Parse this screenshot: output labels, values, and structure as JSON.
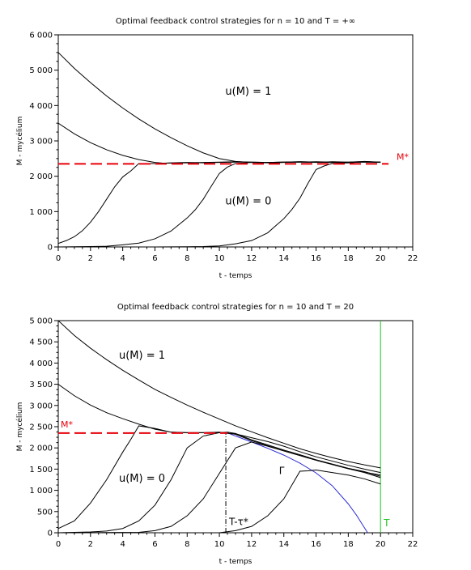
{
  "chart_data": [
    {
      "type": "line",
      "title": "Optimal feedback control strategies for n = 10 and T = +∞",
      "xlabel": "t - temps",
      "ylabel": "M - mycélium",
      "xlim": [
        0,
        22
      ],
      "ylim": [
        0,
        6000
      ],
      "xticks": [
        0,
        2,
        4,
        6,
        8,
        10,
        12,
        14,
        16,
        18,
        20,
        22
      ],
      "xtick_labels": [
        "0",
        "2",
        "4",
        "6",
        "8",
        "10",
        "12",
        "14",
        "16",
        "18",
        "20",
        "22"
      ],
      "yticks": [
        0,
        1000,
        2000,
        3000,
        4000,
        5000,
        6000
      ],
      "ytick_labels": [
        "0",
        "1 000",
        "2 000",
        "3 000",
        "4 000",
        "5 000",
        "6 000"
      ],
      "grid": false,
      "reference_line": {
        "label": "M*",
        "y": 2350,
        "x": [
          0,
          20.5
        ],
        "color": "#e8000b",
        "style": "dashed"
      },
      "annotations": [
        {
          "text": "u(M) = 1",
          "x": 11.8,
          "y": 4300
        },
        {
          "text": "u(M) = 0",
          "x": 11.8,
          "y": 1200
        }
      ],
      "series": [
        {
          "x": [
            0,
            1,
            2,
            3,
            4,
            5,
            6,
            7,
            8,
            9,
            10,
            11,
            12,
            13,
            13.5,
            14,
            15,
            16,
            17,
            18,
            19,
            20
          ],
          "y": [
            5500,
            5050,
            4650,
            4270,
            3930,
            3620,
            3340,
            3090,
            2860,
            2660,
            2500,
            2420,
            2390,
            2380,
            2380,
            2390,
            2400,
            2410,
            2400,
            2390,
            2400,
            2390
          ]
        },
        {
          "x": [
            0,
            1,
            2,
            3,
            4,
            5,
            6,
            6.5,
            7,
            8,
            9,
            10,
            11,
            12,
            13,
            14,
            15,
            16,
            17,
            18,
            19,
            20
          ],
          "y": [
            3500,
            3200,
            2950,
            2750,
            2590,
            2470,
            2390,
            2370,
            2370,
            2380,
            2390,
            2400,
            2410,
            2400,
            2390,
            2400,
            2400,
            2390,
            2410,
            2400,
            2410,
            2400
          ]
        },
        {
          "x": [
            0,
            0.5,
            1,
            1.5,
            2,
            2.5,
            3,
            3.5,
            4,
            4.5,
            5,
            6,
            7,
            8,
            9,
            10,
            11,
            12,
            13,
            14,
            15,
            16,
            17,
            18,
            19,
            20
          ],
          "y": [
            100,
            180,
            290,
            460,
            700,
            1000,
            1350,
            1700,
            1980,
            2150,
            2360,
            2360,
            2380,
            2390,
            2380,
            2390,
            2400,
            2400,
            2390,
            2400,
            2410,
            2400,
            2390,
            2400,
            2420,
            2400
          ]
        },
        {
          "x": [
            0,
            2,
            3,
            4,
            5,
            6,
            7,
            8,
            8.5,
            9,
            9.5,
            10,
            10.5,
            11,
            12,
            13,
            14,
            15,
            16,
            17,
            18,
            19,
            20
          ],
          "y": [
            0,
            10,
            20,
            60,
            110,
            230,
            450,
            820,
            1050,
            1350,
            1720,
            2080,
            2260,
            2360,
            2390,
            2390,
            2400,
            2410,
            2400,
            2390,
            2380,
            2410,
            2400
          ]
        },
        {
          "x": [
            0,
            6,
            8,
            9,
            10,
            11,
            12,
            13,
            13.5,
            14,
            14.5,
            15,
            15.5,
            16,
            16.5,
            17,
            18,
            19,
            20
          ],
          "y": [
            0,
            0,
            5,
            10,
            30,
            90,
            180,
            400,
            600,
            800,
            1060,
            1380,
            1800,
            2190,
            2290,
            2360,
            2380,
            2410,
            2400
          ]
        }
      ]
    },
    {
      "type": "line",
      "title": "Optimal feedback control strategies for n = 10 and T = 20",
      "xlabel": "t - temps",
      "ylabel": "M - mycélium",
      "xlim": [
        0,
        22
      ],
      "ylim": [
        0,
        5000
      ],
      "xticks": [
        0,
        2,
        4,
        6,
        8,
        10,
        12,
        14,
        16,
        18,
        20,
        22
      ],
      "xtick_labels": [
        "0",
        "2",
        "4",
        "6",
        "8",
        "10",
        "12",
        "14",
        "16",
        "18",
        "20",
        "22"
      ],
      "yticks": [
        0,
        500,
        1000,
        1500,
        2000,
        2500,
        3000,
        3500,
        4000,
        4500,
        5000
      ],
      "ytick_labels": [
        "0",
        "500",
        "1 000",
        "1 500",
        "2 000",
        "2 500",
        "3 000",
        "3 500",
        "4 000",
        "4 500",
        "5 000"
      ],
      "grid": false,
      "reference_line": {
        "label": "M*",
        "y": 2350,
        "x": [
          0,
          10.5
        ],
        "color": "#e8000b",
        "style": "dashed"
      },
      "t_star_line": {
        "label": "T-τ*",
        "x": 10.4,
        "y_from": 0,
        "y_to": 2370,
        "style": "dashdot"
      },
      "terminal_line": {
        "label": "T",
        "x": 20,
        "color": "#22c422"
      },
      "gamma_curve": {
        "label": "Γ",
        "color": "#2b2bd6",
        "x": [
          10.4,
          11,
          12,
          13,
          14,
          15,
          16,
          17,
          18,
          18.5,
          19,
          19.2
        ],
        "y": [
          2370,
          2280,
          2140,
          1990,
          1830,
          1640,
          1410,
          1110,
          680,
          420,
          120,
          0
        ]
      },
      "annotations": [
        {
          "text": "u(M) = 1",
          "x": 5.2,
          "y": 4100
        },
        {
          "text": "u(M) = 0",
          "x": 5.2,
          "y": 1200
        }
      ],
      "series": [
        {
          "x": [
            0,
            1,
            2,
            3,
            4,
            5,
            6,
            7,
            8,
            9,
            10,
            11,
            12,
            13,
            14,
            15,
            16,
            17,
            18,
            19,
            20
          ],
          "y": [
            5000,
            4650,
            4350,
            4080,
            3830,
            3600,
            3380,
            3190,
            3010,
            2840,
            2680,
            2520,
            2380,
            2240,
            2110,
            1980,
            1870,
            1770,
            1680,
            1600,
            1530
          ]
        },
        {
          "x": [
            0,
            1,
            2,
            3,
            4,
            5,
            6,
            7,
            8,
            9,
            10,
            11,
            12,
            13,
            14,
            15,
            16,
            17,
            18,
            19,
            20
          ],
          "y": [
            3500,
            3230,
            3010,
            2830,
            2690,
            2560,
            2440,
            2370,
            2360,
            2360,
            2360,
            2330,
            2240,
            2150,
            2040,
            1910,
            1790,
            1690,
            1590,
            1500,
            1420
          ]
        },
        {
          "x": [
            0,
            1,
            2,
            3,
            4,
            4.5,
            5,
            6,
            7,
            8,
            9,
            10,
            11,
            12,
            13,
            14,
            15,
            16,
            17,
            18,
            19,
            20
          ],
          "y": [
            100,
            280,
            700,
            1250,
            1900,
            2200,
            2520,
            2460,
            2370,
            2360,
            2360,
            2370,
            2320,
            2170,
            2050,
            1930,
            1820,
            1710,
            1610,
            1510,
            1430,
            1360
          ]
        },
        {
          "x": [
            0,
            2,
            3,
            4,
            5,
            6,
            7,
            8,
            9,
            10,
            10.5,
            11,
            12,
            13,
            14,
            15,
            16,
            17,
            18,
            19,
            20
          ],
          "y": [
            0,
            20,
            40,
            100,
            280,
            650,
            1250,
            2000,
            2280,
            2360,
            2370,
            2340,
            2190,
            2070,
            1950,
            1840,
            1720,
            1620,
            1520,
            1440,
            1330
          ]
        },
        {
          "x": [
            0,
            5,
            6,
            7,
            8,
            9,
            10,
            11,
            12,
            13,
            14,
            15,
            16,
            17,
            18,
            19,
            20
          ],
          "y": [
            0,
            10,
            50,
            150,
            400,
            800,
            1400,
            2000,
            2140,
            2040,
            1930,
            1820,
            1710,
            1610,
            1510,
            1420,
            1300
          ]
        },
        {
          "x": [
            0,
            10,
            11,
            12,
            13,
            14,
            15,
            15.5,
            16,
            17,
            18,
            19,
            20
          ],
          "y": [
            0,
            0,
            50,
            150,
            400,
            800,
            1450,
            1460,
            1480,
            1420,
            1360,
            1270,
            1150
          ]
        }
      ]
    }
  ]
}
